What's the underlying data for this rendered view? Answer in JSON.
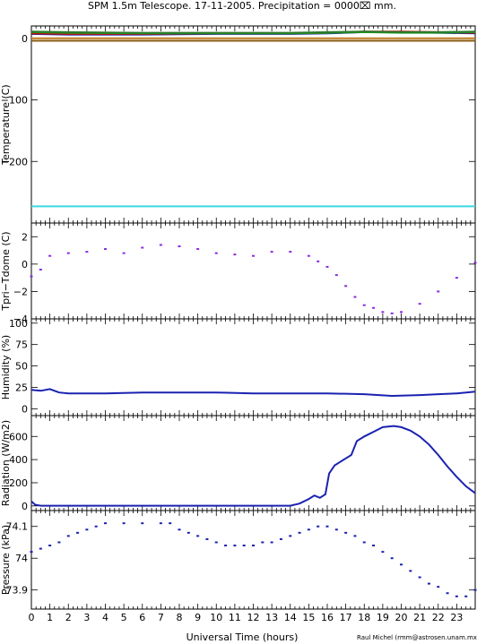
{
  "title": "SPM 1.5m Telescope. 17-11-2005. Precipitation = 0000⌧ mm.",
  "xlabel": "Universal Time (hours)",
  "credit": "Raul Michel (rmm@astrosen.unam.mx)",
  "x_ticks": [
    "0",
    "1",
    "2",
    "3",
    "4",
    "5",
    "6",
    "7",
    "8",
    "9",
    "10",
    "11",
    "12",
    "13",
    "14",
    "15",
    "16",
    "17",
    "18",
    "19",
    "20",
    "21",
    "22",
    "23"
  ],
  "chart_data": [
    {
      "type": "line",
      "ylabel": "Temperature (C)",
      "xlim": [
        0,
        24
      ],
      "ylim": [
        -300,
        20
      ],
      "y_ticks": [
        "0",
        "−100",
        "−200"
      ],
      "y_tick_values": [
        0,
        -100,
        -200
      ],
      "series": [
        {
          "color": "#1a22b0",
          "x": [
            0,
            2,
            6,
            10,
            14,
            16,
            18,
            20,
            22,
            24
          ],
          "y": [
            7,
            6,
            6,
            7,
            7,
            8,
            10,
            10,
            9,
            8
          ]
        },
        {
          "color": "#c01010",
          "x": [
            0,
            2,
            6,
            10,
            14,
            16,
            18,
            20,
            22,
            24
          ],
          "y": [
            8,
            7,
            7,
            8,
            8,
            9,
            11,
            11,
            10,
            9
          ]
        },
        {
          "color": "#1aa01a",
          "x": [
            0,
            2,
            6,
            10,
            14,
            16,
            18,
            20,
            22,
            24
          ],
          "y": [
            10,
            9,
            8,
            8,
            8,
            9,
            10,
            9,
            9,
            10
          ]
        },
        {
          "color": "#2a7a2a",
          "x": [
            0,
            2,
            6,
            10,
            14,
            16,
            18,
            20,
            22,
            24
          ],
          "y": [
            11,
            10,
            9,
            9,
            9,
            10,
            11,
            10,
            10,
            11
          ]
        },
        {
          "color": "#c07a20",
          "x": [
            0,
            24
          ],
          "y": [
            0,
            0
          ]
        },
        {
          "color": "#8a5a10",
          "x": [
            0,
            24
          ],
          "y": [
            -4,
            -4
          ]
        },
        {
          "color": "#3ad8e0",
          "x": [
            0,
            24
          ],
          "y": [
            -273,
            -273
          ]
        }
      ]
    },
    {
      "type": "scatter",
      "ylabel": "Tpri−Tdome (C)",
      "xlim": [
        0,
        24
      ],
      "ylim": [
        -4,
        3
      ],
      "y_ticks": [
        "2",
        "0",
        "−2",
        "−4"
      ],
      "y_tick_values": [
        2,
        0,
        -2,
        -4
      ],
      "series": [
        {
          "color": "#8a2be2",
          "x": [
            0,
            0.5,
            1,
            2,
            3,
            4,
            5,
            6,
            7,
            8,
            9,
            10,
            11,
            12,
            13,
            14,
            15,
            15.5,
            16,
            16.5,
            17,
            17.5,
            18,
            18.5,
            19,
            19.5,
            20,
            21,
            22,
            23,
            24
          ],
          "y": [
            -0.9,
            -0.4,
            0.6,
            0.8,
            0.9,
            1.1,
            0.8,
            1.2,
            1.4,
            1.3,
            1.1,
            0.8,
            0.7,
            0.6,
            0.9,
            0.9,
            0.6,
            0.2,
            -0.2,
            -0.8,
            -1.6,
            -2.4,
            -3.0,
            -3.2,
            -3.5,
            -3.6,
            -3.5,
            -2.9,
            -2.0,
            -1.0,
            0.1
          ]
        }
      ]
    },
    {
      "type": "line",
      "ylabel": "Humidity (%)",
      "xlim": [
        0,
        24
      ],
      "ylim": [
        -8,
        105
      ],
      "y_ticks": [
        "100",
        "75",
        "50",
        "25",
        "0"
      ],
      "y_tick_values": [
        100,
        75,
        50,
        25,
        0
      ],
      "series": [
        {
          "color": "#1a22b0",
          "x": [
            0,
            0.5,
            1,
            1.5,
            2,
            3,
            4,
            6,
            8,
            10,
            12,
            14,
            16,
            18,
            19.5,
            21,
            22,
            23,
            24
          ],
          "y": [
            22,
            21,
            23,
            19,
            18,
            18,
            18,
            19,
            19,
            19,
            18,
            18,
            18,
            17,
            15,
            16,
            17,
            18,
            20
          ]
        }
      ]
    },
    {
      "type": "line",
      "ylabel": "Radiation (W/m2)",
      "xlim": [
        0,
        24
      ],
      "ylim": [
        -40,
        780
      ],
      "y_ticks": [
        "600",
        "400",
        "200",
        "0"
      ],
      "y_tick_values": [
        600,
        400,
        200,
        0
      ],
      "series": [
        {
          "color": "#1a22b0",
          "x": [
            0,
            0.2,
            0.5,
            14,
            14.5,
            15,
            15.3,
            15.6,
            15.9,
            16.1,
            16.4,
            16.7,
            17,
            17.3,
            17.6,
            18,
            18.5,
            19,
            19.6,
            20,
            20.5,
            21,
            21.5,
            22,
            22.5,
            23,
            23.5,
            24
          ],
          "y": [
            40,
            10,
            2,
            2,
            20,
            60,
            90,
            70,
            100,
            280,
            350,
            380,
            410,
            440,
            560,
            600,
            640,
            680,
            690,
            680,
            650,
            600,
            530,
            440,
            340,
            250,
            170,
            110
          ]
        }
      ]
    },
    {
      "type": "scatter",
      "ylabel": "Pressure (kPa)",
      "xlim": [
        0,
        24
      ],
      "ylim": [
        73.84,
        74.15
      ],
      "y_ticks": [
        "74.1",
        "74",
        "73.9"
      ],
      "y_tick_values": [
        74.1,
        74.0,
        73.9
      ],
      "series": [
        {
          "color": "#1a22b0",
          "x": [
            0,
            0.5,
            1,
            1.5,
            2,
            2.5,
            3,
            3.5,
            4,
            5,
            6,
            7,
            7.5,
            8,
            8.5,
            9,
            9.5,
            10,
            10.5,
            11,
            11.5,
            12,
            12.5,
            13,
            13.5,
            14,
            14.5,
            15,
            15.5,
            16,
            16.5,
            17,
            17.5,
            18,
            18.5,
            19,
            19.5,
            20,
            20.5,
            21,
            21.5,
            22,
            22.5,
            23,
            23.5,
            24
          ],
          "y": [
            74.02,
            74.03,
            74.04,
            74.05,
            74.07,
            74.08,
            74.09,
            74.1,
            74.11,
            74.11,
            74.11,
            74.11,
            74.11,
            74.09,
            74.08,
            74.07,
            74.06,
            74.05,
            74.04,
            74.04,
            74.04,
            74.04,
            74.05,
            74.05,
            74.06,
            74.07,
            74.08,
            74.09,
            74.1,
            74.1,
            74.09,
            74.08,
            74.07,
            74.05,
            74.04,
            74.02,
            74.0,
            73.98,
            73.96,
            73.94,
            73.92,
            73.91,
            73.89,
            73.88,
            73.88,
            73.9
          ]
        }
      ]
    }
  ]
}
